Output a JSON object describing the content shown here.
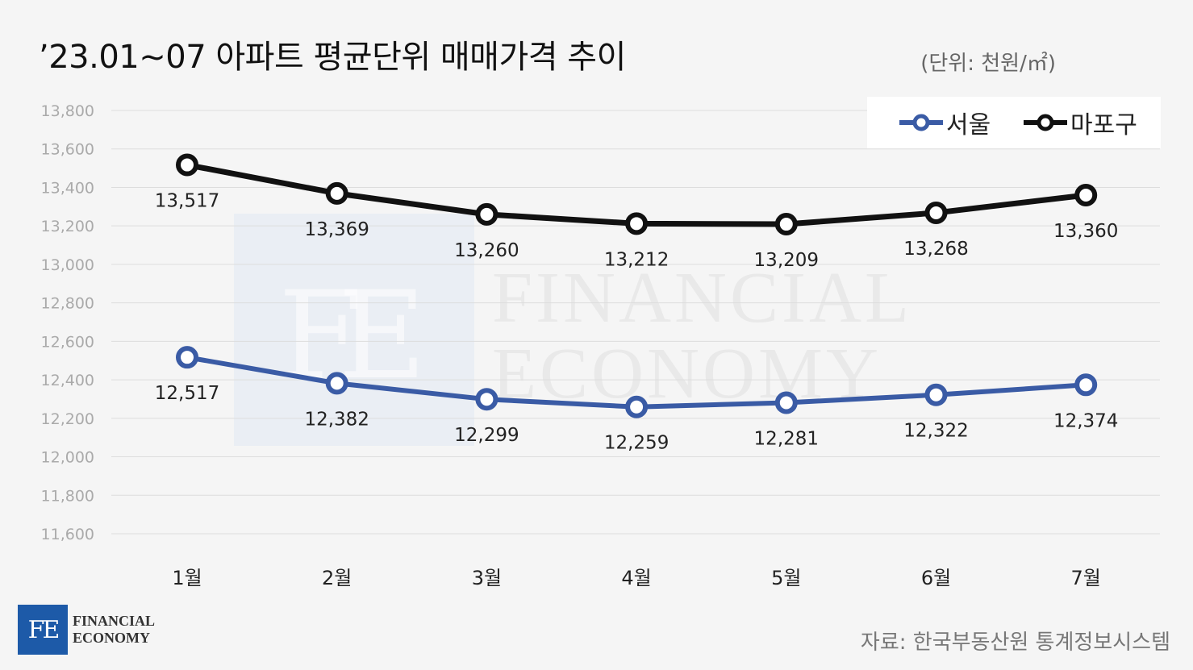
{
  "header": {
    "title": "’23.01~07 아파트 평균단위 매매가격 추이",
    "unit": "(단위: 천원/㎡)"
  },
  "watermark": {
    "mark": "FE",
    "line1": "FINANCIAL",
    "line2": "ECONOMY"
  },
  "logo": {
    "mark": "FE",
    "line1": "FINANCIAL",
    "line2": "ECONOMY"
  },
  "source": "자료: 한국부동산원 통계정보시스템",
  "colors": {
    "seoul": "#3a5ba5",
    "mapo": "#111111",
    "grid": "#dddddd",
    "tick_label": "#aaaaaa"
  },
  "chart_data": {
    "type": "line",
    "title": "’23.01~07 아파트 평균단위 매매가격 추이",
    "xlabel": "",
    "ylabel": "",
    "categories": [
      "1월",
      "2월",
      "3월",
      "4월",
      "5월",
      "6월",
      "7월"
    ],
    "series": [
      {
        "name": "서울",
        "values": [
          12517,
          12382,
          12299,
          12259,
          12281,
          12322,
          12374
        ],
        "labels": [
          "12,517",
          "12,382",
          "12,299",
          "12,259",
          "12,281",
          "12,322",
          "12,374"
        ]
      },
      {
        "name": "마포구",
        "values": [
          13517,
          13369,
          13260,
          13212,
          13209,
          13268,
          13360
        ],
        "labels": [
          "13,517",
          "13,369",
          "13,260",
          "13,212",
          "13,209",
          "13,268",
          "13,360"
        ]
      }
    ],
    "yticks": [
      11600,
      11800,
      12000,
      12200,
      12400,
      12600,
      12800,
      13000,
      13200,
      13400,
      13600,
      13800
    ],
    "ytick_labels": [
      "11,600",
      "11,800",
      "12,000",
      "12,200",
      "12,400",
      "12,600",
      "12,800",
      "13,000",
      "13,200",
      "13,400",
      "13,600",
      "13,800"
    ],
    "ylim": [
      11600,
      13800
    ],
    "grid": true,
    "legend": "top-right"
  }
}
